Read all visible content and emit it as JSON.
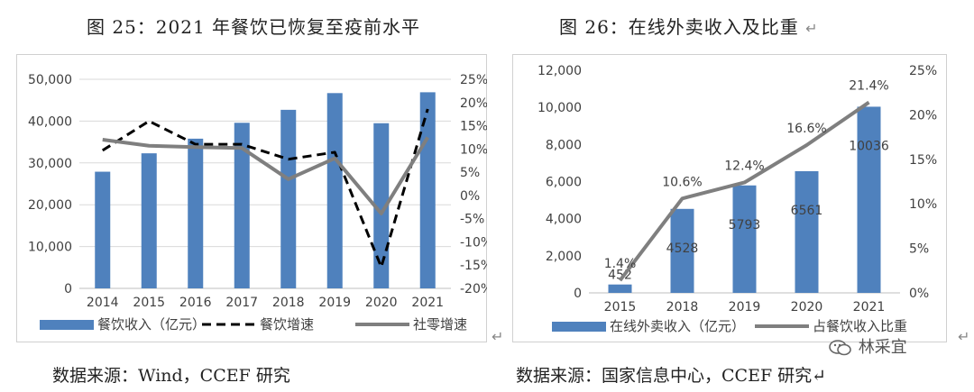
{
  "left": {
    "title": "图 25：2021 年餐饮已恢复至疫前水平",
    "source": "数据来源：Wind，CCEF 研究",
    "end_mark": "↵"
  },
  "right": {
    "title": "图 26：在线外卖收入及比重",
    "title_mark": "↵",
    "source": "数据来源：国家信息中心，CCEF 研究↵",
    "end_mark": "↵"
  },
  "watermark": {
    "text": "林采宜",
    "icon": "wechat-icon"
  },
  "chart_data": [
    {
      "type": "bar+line",
      "categories": [
        "2014",
        "2015",
        "2016",
        "2017",
        "2018",
        "2019",
        "2020",
        "2021"
      ],
      "y_left": {
        "ticks": [
          "0",
          "10,000",
          "20,000",
          "30,000",
          "40,000",
          "50,000"
        ],
        "range": [
          0,
          50000
        ]
      },
      "y_right": {
        "ticks": [
          "-20%",
          "-15%",
          "-10%",
          "-5%",
          "0%",
          "5%",
          "10%",
          "15%",
          "20%",
          "25%"
        ],
        "range": [
          -20,
          25
        ]
      },
      "grid": true,
      "series": [
        {
          "name": "餐饮收入（亿元）",
          "type": "bar",
          "axis": "left",
          "color": "#4f81bd",
          "values": [
            27900,
            32300,
            35800,
            39600,
            42700,
            46700,
            39500,
            46900
          ]
        },
        {
          "name": "餐饮增速",
          "type": "line",
          "style": "dashed",
          "axis": "right",
          "color": "#000000",
          "values": [
            9.7,
            16.0,
            11.0,
            11.0,
            7.8,
            9.3,
            -15.4,
            18.6
          ]
        },
        {
          "name": "社零增速",
          "type": "line",
          "style": "solid",
          "axis": "right",
          "color": "#7f7f7f",
          "values": [
            12.0,
            10.7,
            10.4,
            10.2,
            3.5,
            8.0,
            -3.9,
            12.5
          ]
        }
      ],
      "legend": "bottom"
    },
    {
      "type": "bar+line",
      "categories": [
        "2015",
        "2018",
        "2019",
        "2020",
        "2021"
      ],
      "y_left": {
        "ticks": [
          "0",
          "2,000",
          "4,000",
          "6,000",
          "8,000",
          "10,000",
          "12,000"
        ],
        "range": [
          0,
          12000
        ]
      },
      "y_right": {
        "ticks": [
          "0%",
          "5%",
          "10%",
          "15%",
          "20%",
          "25%"
        ],
        "range": [
          0,
          25
        ]
      },
      "grid": false,
      "series": [
        {
          "name": "在线外卖收入（亿元）",
          "type": "bar",
          "axis": "left",
          "color": "#4f81bd",
          "values": [
            452,
            4528,
            5793,
            6561,
            10036
          ],
          "labels": [
            "452",
            "4528",
            "5793",
            "6561",
            "10036"
          ]
        },
        {
          "name": "占餐饮收入比重",
          "type": "line",
          "style": "solid",
          "axis": "right",
          "color": "#7f7f7f",
          "values": [
            1.4,
            10.6,
            12.4,
            16.6,
            21.4
          ],
          "labels": [
            "1.4%",
            "10.6%",
            "12.4%",
            "16.6%",
            "21.4%"
          ]
        }
      ],
      "legend": "bottom"
    }
  ]
}
